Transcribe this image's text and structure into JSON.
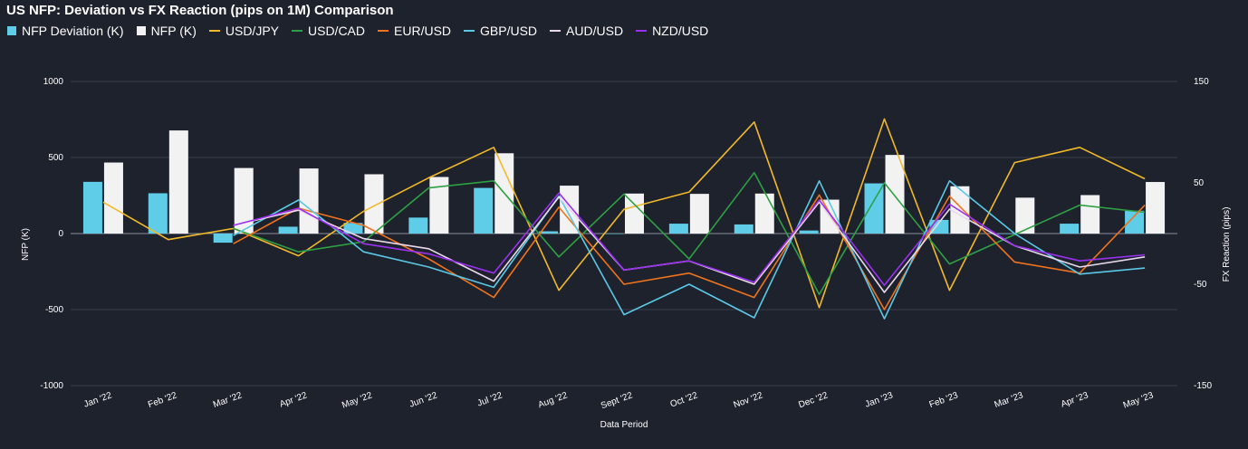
{
  "chart_data": {
    "type": "bar",
    "title": "US NFP: Deviation vs FX Reaction (pips on 1M) Comparison",
    "xlabel": "Data Period",
    "ylabel": "NFP (K)",
    "y2label": "FX Reaction (pips)",
    "ylim": [
      -1000,
      1000
    ],
    "y2lim": [
      -150,
      150
    ],
    "yticks": [
      "1000",
      "500",
      "0",
      "-500",
      "-1000"
    ],
    "y2ticks": [
      "150",
      "50",
      "-50",
      "-150"
    ],
    "legend_position": "top-left",
    "categories": [
      "Jan '22",
      "Feb '22",
      "Mar '22",
      "Apr '22",
      "May '22",
      "Jun '22",
      "Jul '22",
      "Aug '22",
      "Sept '22",
      "Oct '22",
      "Nov '22",
      "Dec '22",
      "Jan '23",
      "Feb '23",
      "Mar '23",
      "Apr '23",
      "May '23"
    ],
    "bar_series": [
      {
        "name": "NFP Deviation (K)",
        "color": "#5fcde8",
        "axis": "left",
        "values": [
          340,
          265,
          -60,
          45,
          70,
          105,
          300,
          15,
          0,
          65,
          60,
          20,
          330,
          90,
          0,
          65,
          150
        ]
      },
      {
        "name": "NFP (K)",
        "color": "#f2f2f2",
        "axis": "left",
        "values": [
          467,
          678,
          431,
          428,
          390,
          372,
          528,
          315,
          263,
          261,
          263,
          223,
          517,
          311,
          236,
          253,
          339
        ]
      }
    ],
    "line_series": [
      {
        "name": "USD/JPY",
        "color": "#f2b928",
        "axis": "right",
        "values": [
          31,
          -6,
          5,
          -22,
          22,
          55,
          85,
          -56,
          24,
          41,
          110,
          -73,
          113,
          -56,
          70,
          85,
          54
        ]
      },
      {
        "name": "USD/CAD",
        "color": "#2ea043",
        "axis": "right",
        "values": [
          null,
          null,
          5,
          -18,
          -8,
          45,
          52,
          -23,
          39,
          -25,
          60,
          -60,
          50,
          -30,
          -1,
          28,
          21
        ]
      },
      {
        "name": "EUR/USD",
        "color": "#f0731e",
        "axis": "right",
        "values": [
          null,
          null,
          -10,
          25,
          8,
          -25,
          -63,
          26,
          -50,
          -39,
          -63,
          38,
          -75,
          37,
          -28,
          -39,
          28
        ]
      },
      {
        "name": "GBP/USD",
        "color": "#5bc8e6",
        "axis": "right",
        "values": [
          null,
          null,
          -2,
          33,
          -18,
          -33,
          -53,
          37,
          -80,
          -50,
          -83,
          52,
          -84,
          52,
          0,
          -40,
          -34
        ]
      },
      {
        "name": "AUD/USD",
        "color": "#ead8ec",
        "axis": "right",
        "values": [
          null,
          null,
          8,
          23,
          -5,
          -15,
          -47,
          36,
          -36,
          -27,
          -50,
          31,
          -58,
          24,
          -12,
          -33,
          -23
        ]
      },
      {
        "name": "NZD/USD",
        "color": "#9b30f0",
        "axis": "right",
        "values": [
          null,
          null,
          8,
          25,
          -10,
          -20,
          -39,
          40,
          -36,
          -27,
          -48,
          33,
          -51,
          29,
          -12,
          -27,
          -21
        ]
      }
    ]
  }
}
